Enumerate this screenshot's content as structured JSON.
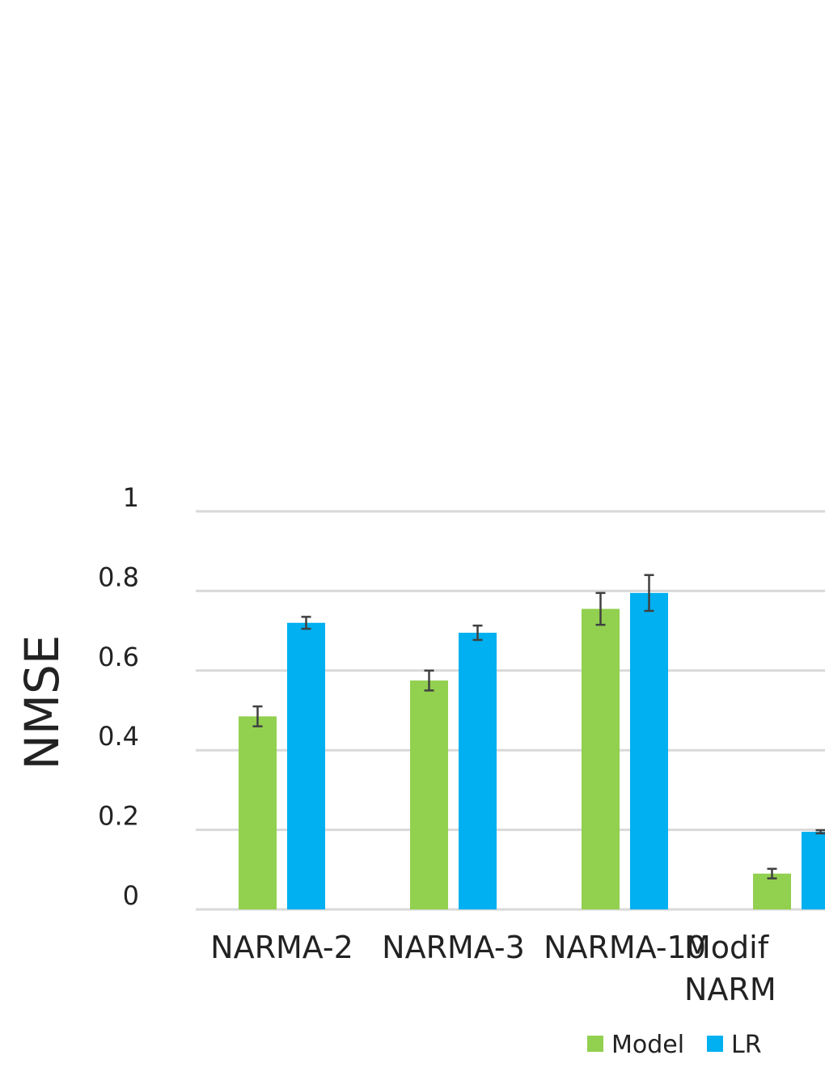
{
  "chart_data": {
    "type": "bar",
    "ylabel": "NMSE",
    "xlabel": "",
    "ylim": [
      0,
      1
    ],
    "yticks": [
      "0",
      "0.2",
      "0.4",
      "0.6",
      "0.8",
      "1"
    ],
    "grid": true,
    "legend_position": "bottom",
    "categories": [
      [
        "NARMA-2"
      ],
      [
        "NARMA-3"
      ],
      [
        "NARMA-10"
      ],
      [
        "Modif",
        "NARM"
      ]
    ],
    "series": [
      {
        "name": "Model",
        "color": "#92d050",
        "values": [
          0.485,
          0.575,
          0.755,
          0.09
        ],
        "errors": [
          0.025,
          0.025,
          0.04,
          0.012
        ]
      },
      {
        "name": "LR",
        "color": "#00b0f0",
        "values": [
          0.72,
          0.695,
          0.795,
          0.195
        ],
        "errors": [
          0.015,
          0.018,
          0.045,
          0.004
        ]
      }
    ]
  }
}
